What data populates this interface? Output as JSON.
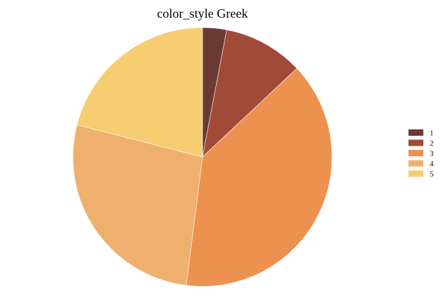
{
  "chart_data": {
    "type": "pie",
    "title": "color_style Greek",
    "categories": [
      "1",
      "2",
      "3",
      "4",
      "5"
    ],
    "values": [
      3,
      10,
      39,
      27,
      21
    ],
    "colors": [
      "#6b3a33",
      "#a24a38",
      "#ec9150",
      "#efb06e",
      "#f6cd70"
    ],
    "start_angle_deg": 0,
    "direction": "clockwise",
    "legend_position": "right"
  }
}
